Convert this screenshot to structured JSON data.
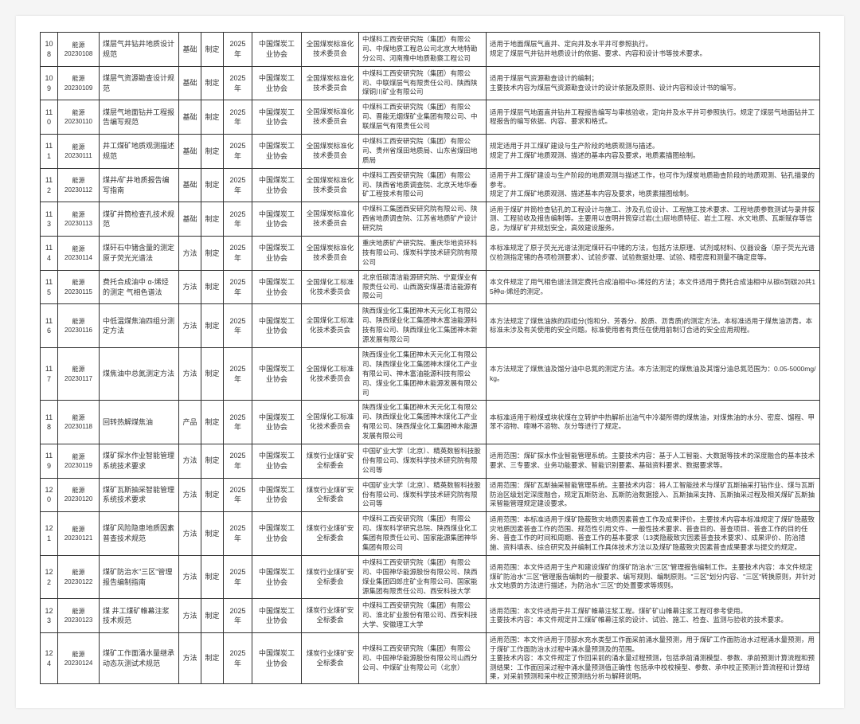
{
  "rows": [
    {
      "idx": "108",
      "id_top": "能源",
      "id_bot": "20230108",
      "name": "煤层气井钻井地质设计规范",
      "type": "基础",
      "action": "制定",
      "year": "2025 年",
      "org": "中国煤炭工业协会",
      "committee": "全国煤炭标准化技术委员会",
      "unit": "中煤科工西安研究院（集团）有限公司、中煤地质工程总公司北京大地特勘分公司、河南豫中地质勘察工程公司",
      "desc": "适用于地面煤层气直井、定向井及水平井可参照执行。\n规定了煤层气井钻井地质设计的依据、要求、内容和设计书等技术要求。"
    },
    {
      "idx": "109",
      "id_top": "能源",
      "id_bot": "20230109",
      "name": "煤层气资源勘查设计规范",
      "type": "基础",
      "action": "制定",
      "year": "2025 年",
      "org": "中国煤炭工业协会",
      "committee": "全国煤炭标准化技术委员会",
      "unit": "中煤科工西安研究院（集团）有限公司、中联煤层气有限责任公司、陕西陕煤铜川矿业有限公司",
      "desc": "适用于煤层气资源勘查设计的编制；\n主要技术内容为煤层气资源勘查设计的设计依据及原则、设计内容和设计书的编写。"
    },
    {
      "idx": "110",
      "id_top": "能源",
      "id_bot": "20230110",
      "name": "煤层气地面钻井工程报告编写规范",
      "type": "基础",
      "action": "制定",
      "year": "2025 年",
      "org": "中国煤炭工业协会",
      "committee": "全国煤炭标准化技术委员会",
      "unit": "中煤科工西安研究院（集团）有限公司、晋能无烟煤矿业集团有限公司、中联煤层气有限责任公司",
      "desc": "适用于煤层气地面直井钻井工程报告编写与审核验收，定向井及水平井可参照执行。规定了煤层气地面钻井工程报告的编写依据、内容、要求和格式。"
    },
    {
      "idx": "111",
      "id_top": "能源",
      "id_bot": "20230111",
      "name": "井工煤矿地质观测描述规范",
      "type": "基础",
      "action": "制定",
      "year": "2025 年",
      "org": "中国煤炭工业协会",
      "committee": "全国煤炭标准化技术委员会",
      "unit": "中煤科工西安研究院（集团）有限公司、贵州省煤田地质局、山东省煤田地质局",
      "desc": "规定适用于井工煤矿建设与生产阶段的地质观测与描述。\n规定了井工煤矿地质观测、描述的基本内容及要求，地质素描图绘制。"
    },
    {
      "idx": "112",
      "id_top": "能源",
      "id_bot": "20230112",
      "name": "煤井/矿井地质报告编写指南",
      "type": "基础",
      "action": "制定",
      "year": "2025 年",
      "org": "中国煤炭工业协会",
      "committee": "全国煤炭标准化技术委员会",
      "unit": "中煤科工西安研究院（集团）有限公司、陕西省地质调查院、北京天地华泰矿工程技术有限公司",
      "desc": "适用于井工煤矿建设与生产阶段的地质观测与描述工作，也可作为煤炭地质勘查阶段的地质观测、钻孔描录的参考。\n规定了井工煤矿地质观测、描述基本内容及要求，地质素描图绘制。"
    },
    {
      "idx": "113",
      "id_top": "能源",
      "id_bot": "20230113",
      "name": "煤矿井筒检查孔技术规范",
      "type": "基础",
      "action": "制定",
      "year": "2025 年",
      "org": "中国煤炭工业协会",
      "committee": "全国煤炭标准化技术委员会",
      "unit": "中煤科工集团西安研究院有限公司、陕西省地质调查院、江苏省地质矿产设计研究院",
      "desc": "适用于煤矿井筒检查钻孔的工程设计与施工、涉及孔位设计、工程施工技术要求、工程地质参数测试与录井探测、工程验收及报告编制等。主要用以查明井筒穿过岩(土)层地质特征、岩土工程、水文地质、瓦斯赋存等信息，为煤矿矿井规划安全，高效建设服务。"
    },
    {
      "idx": "114",
      "id_top": "能源",
      "id_bot": "20230114",
      "name": "煤矸石中锗含量的测定 原子荧光光谱法",
      "type": "方法",
      "action": "制定",
      "year": "2025 年",
      "org": "中国煤炭工业协会",
      "committee": "全国煤炭标准化技术委员会",
      "unit": "重庆地质矿产研究院、重庆华地资环科技有限公司、煤炭科学技术研究院有限公司",
      "desc": "本标准规定了原子荧光光谱法测定煤矸石中锗的方法，包括方法原理、试剂或材料、仪器设备（原子荧光光谱仪检测指定锗的各项检测要求）、试验步骤、试验数据处理、试验、精密度和测量不确定度等。"
    },
    {
      "idx": "115",
      "id_top": "能源",
      "id_bot": "20230115",
      "name": "费托合成油中 α-烯烃的测定 气相色谱法",
      "type": "方法",
      "action": "制定",
      "year": "2025 年",
      "org": "中国煤炭工业协会",
      "committee": "全国煤化工标准化技术委员会",
      "unit": "北京低碳清洁能源研究院、宁夏煤业有限责任公司、山西潞安煤基清洁能源有限公司",
      "desc": "本文件规定了用气相色谱法测定费托合成油相中α-烯烃的方法；本文件适用于费托合成油相中从碳6到碳20共15种α-烯烃的测定。"
    },
    {
      "idx": "116",
      "id_top": "能源",
      "id_bot": "20230116",
      "name": "中低温煤焦油四组分测定方法",
      "type": "方法",
      "action": "制定",
      "year": "2025 年",
      "org": "中国煤炭工业协会",
      "committee": "全国煤化工标准化技术委员会",
      "unit": "陕西煤业化工集团神木天元化工有限公司、陕西煤业化工集团神木富油能源科技有限公司、陕西煤业化工集团神木新源发展有限公司",
      "desc": "本方法规定了煤焦油族的四组分(饱和分、芳香分、胶质、沥青质)的测定方法。本标准适用于煤焦油沥青。本标准未涉及有关使用的安全问题。标准使用者有责任在使用前制订合适的安全应用规程。"
    },
    {
      "idx": "117",
      "id_top": "能源",
      "id_bot": "20230117",
      "name": "煤焦油中总氮测定方法",
      "type": "方法",
      "action": "制定",
      "year": "2025 年",
      "org": "中国煤炭工业协会",
      "committee": "全国煤化工标准化技术委员会",
      "unit": "陕西煤业化工集团神木天元化工有限公司、陕西煤业化工集团神木煤化工产业有限公司、神木富油能源科技有限公司、煤业化工集团神木能源发展有限公司",
      "desc": "本方法规定了煤焦油及馏分油中总氮的测定方法。本方法测定的煤焦油及其馏分油总氮范围为：0.05-5000mg/kg。"
    },
    {
      "idx": "118",
      "id_top": "能源",
      "id_bot": "20230118",
      "name": "回转热解煤焦油",
      "type": "产品",
      "action": "制定",
      "year": "2025 年",
      "org": "中国煤炭工业协会",
      "committee": "全国煤化工标准化技术委员会",
      "unit": "陕西煤业化工集团神木天元化工有限公司、陕西煤业化工集团神木煤化工产业有限公司、陕西煤业化工集团神木能源发展有限公司",
      "desc": "本标准适用于粉煤或块状煤在立转炉中热解析出油气中冷凝所得的煤焦油，对煤焦油的水分、密度、馏程、甲苯不溶物、喹啉不溶物、灰分等进行了规定。"
    },
    {
      "idx": "119",
      "id_top": "能源",
      "id_bot": "20230119",
      "name": "煤矿探水作业智能管理系统技术要求",
      "type": "方法",
      "action": "制定",
      "year": "2025 年",
      "org": "中国煤炭工业协会",
      "committee": "煤炭行业煤矿安全标委会",
      "unit": "中国矿业大学（北京）、精英数智科技股份有限公司、煤炭科学技术研究院有限公司等",
      "desc": "适用范围：煤矿探水作业智能管理系统。主要技术内容：基于人工智能、大数据等技术的深度融合的基本技术要求、三专要求、业务功能要求、智能识别要素、基础资料要求、数据要求等。"
    },
    {
      "idx": "120",
      "id_top": "能源",
      "id_bot": "20230120",
      "name": "煤矿瓦斯抽采智能管理系统技术要求",
      "type": "方法",
      "action": "制定",
      "year": "2025 年",
      "org": "中国煤炭工业协会",
      "committee": "煤炭行业煤矿安全标委会",
      "unit": "中国矿业大学（北京）、精英数智科技股份有限公司、煤炭科学技术研究院有限公司等",
      "desc": "适用范围：煤矿瓦斯抽采智能管理系统。主要技术内容：将人工智能技术与煤矿瓦斯抽采打钻作业、煤与瓦斯防治区级划定深度融合，规定瓦斯防治、瓦斯防治数据接入、瓦斯抽采支持、瓦斯抽采过程及相关煤矿瓦斯抽采智能管理规定建设要求。"
    },
    {
      "idx": "121",
      "id_top": "能源",
      "id_bot": "20230121",
      "name": "煤矿风险隐患地质因素普查技术规范",
      "type": "方法",
      "action": "制定",
      "year": "2025 年",
      "org": "中国煤炭工业协会",
      "committee": "煤炭行业煤矿安全标委会",
      "unit": "中煤科工西安研究院（集团）有限公司、煤炭科学研究总院、陕西煤业化工集团有限责任公司、国家能源集团神华集团有限公司",
      "desc": "适用范围：本标准适用于煤矿隐蔽致灾地质因素普查工作及成果评价。主要技术内容本标准规定了煤矿隐蔽致灾地质因素普查工作的范围、规范性引用文件、一般性技术要求、普查目的、普查项目、普查工作的目的任务、普查工作的时间和周期、普查工作的基本要求（13类隐蔽致灾因素普查技术要求）、成果评价、防治措施、资料填表、综合研究及并编制工作具体技术方法以及煤矿隐蔽致灾因素普查成果要求与提交的规定。"
    },
    {
      "idx": "122",
      "id_top": "能源",
      "id_bot": "20230122",
      "name": "煤矿防治水\"三区\"管理报告编制指南",
      "type": "方法",
      "action": "制定",
      "year": "2025 年",
      "org": "中国煤炭工业协会",
      "committee": "煤炭行业煤矿安全标委会",
      "unit": "中煤科工西安研究院（集团）有限公司、中国神华能源股份有限公司、陕西煤业集团四郎庄矿业有限公司、国家能源集团有限责任公司、西安科技大学",
      "desc": "适用范围：本文件适用于生产和建设煤矿的煤矿防治水\"三区\"管理报告编制工作。主要技术内容：本文件规定煤矿防治水\"三区\"管理报告编制的一般要求、编写规则、编制原则。\"三区\"划分内容、\"三区\"转换原则，并针对水文地质的方法进行描述，为防治水\"三区\"的处置要求等规则。"
    },
    {
      "idx": "123",
      "id_top": "能源",
      "id_bot": "20230123",
      "name": "煤 井工煤矿帷幕注浆技术规范",
      "type": "方法",
      "action": "制定",
      "year": "2025 年",
      "org": "中国煤炭工业协会",
      "committee": "煤炭行业煤矿安全标委会",
      "unit": "中煤科工西安研究院（集团）有限公司、淮北矿业股份有限公司、西安科技大学、安徽理工大学",
      "desc": "适用范围：本文件适用于井工煤矿帷幕注浆工程。煤矿矿山帷幕注浆工程可参考使用。\n主要技术内容：本文件规定井工煤矿帷幕注浆的设计、试验、施工、检查、监测与验收的技术要求。"
    },
    {
      "idx": "124",
      "id_top": "能源",
      "id_bot": "20230124",
      "name": "煤矿工作面涌水量继承动态灰测试术规范",
      "type": "方法",
      "action": "制定",
      "year": "2025 年",
      "org": "中国煤炭工业协会",
      "committee": "煤炭行业煤矿安全标委会",
      "unit": "中煤科工西安研究院（集团）有限公司、中国神华能源股份有限公司山西分公司、中煤矿业有限公司（北京）",
      "desc": "适用范围：本文件适用于顶部水充水类型工作面采前涌水量预测，用于煤矿工作面防治水过程涌水量预测，用于煤矿工作面防治水过程中涌水量预测及的范围。\n主要技术内容：本文件规定了作回采前的涌水量过程预测，包括承前涌测模型、参数、承前预测计算流程和预测结果：工作面回采过程中涌水量预测值正确性 包括承中校校模型、参数、承中校正预测计算流程和计算结果，对采前预测和采中校正预测结分析与解释说明。"
    }
  ]
}
